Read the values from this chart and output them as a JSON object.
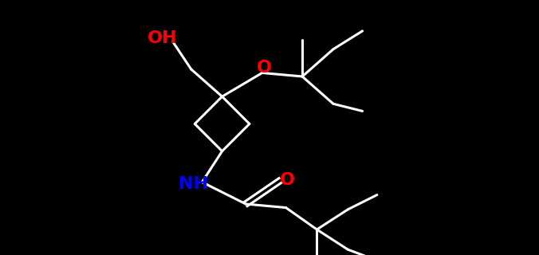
{
  "background_color": "#000000",
  "bond_color": "#ffffff",
  "OH_color": "#ff0000",
  "O_color": "#ff0000",
  "NH_color": "#0000ff",
  "bond_width": 2.2,
  "figsize": [
    6.76,
    3.2
  ],
  "dpi": 100,
  "xlim": [
    -5.0,
    6.0
  ],
  "ylim": [
    -3.5,
    3.5
  ],
  "font_size": 16
}
